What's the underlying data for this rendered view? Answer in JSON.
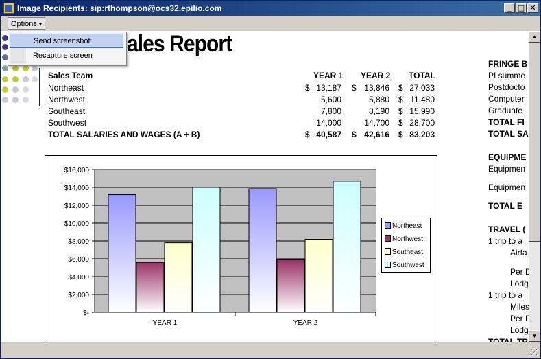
{
  "window": {
    "title": "Image Recipients: sip:rthompson@ocs32.epilio.com",
    "minimize_glyph": "_",
    "maximize_glyph": "□",
    "close_glyph": "✕"
  },
  "toolbar": {
    "options_label": "Options",
    "options_arrow": "▾"
  },
  "dropdown": {
    "items": [
      {
        "label": "Send screenshot",
        "selected": true
      },
      {
        "label": "Recapture screen",
        "selected": false
      }
    ]
  },
  "report": {
    "title": "ales Report",
    "header": {
      "team": "Sales Team",
      "year1": "YEAR 1",
      "year2": "YEAR 2",
      "total": "TOTAL"
    },
    "rows": [
      {
        "team": "Northeast",
        "y1_cur": "$",
        "y1": "13,187",
        "y2_cur": "$",
        "y2": "13,846",
        "t_cur": "$",
        "total": "27,033",
        "bold": false
      },
      {
        "team": "Northwest",
        "y1_cur": "",
        "y1": "5,600",
        "y2_cur": "",
        "y2": "5,880",
        "t_cur": "$",
        "total": "11,480",
        "bold": false
      },
      {
        "team": "Southeast",
        "y1_cur": "",
        "y1": "7,800",
        "y2_cur": "",
        "y2": "8,190",
        "t_cur": "$",
        "total": "15,990",
        "bold": false
      },
      {
        "team": "Southwest",
        "y1_cur": "",
        "y1": "14,000",
        "y2_cur": "",
        "y2": "14,700",
        "t_cur": "$",
        "total": "28,700",
        "bold": false
      },
      {
        "team": "TOTAL SALARIES AND WAGES (A + B)",
        "y1_cur": "$",
        "y1": "40,587",
        "y2_cur": "$",
        "y2": "42,616",
        "t_cur": "$",
        "total": "83,203",
        "bold": true
      }
    ]
  },
  "right_column": [
    {
      "text": "FRINGE B",
      "bold": true
    },
    {
      "text": "PI summe",
      "bold": false
    },
    {
      "text": "Postdocto",
      "bold": false
    },
    {
      "text": "Computer",
      "bold": false
    },
    {
      "text": "Graduate",
      "bold": false
    },
    {
      "text": "TOTAL FI",
      "bold": true
    },
    {
      "text": "TOTAL SA",
      "bold": true
    },
    {
      "text": "EQUIPME",
      "bold": true
    },
    {
      "text": "Equipmen",
      "bold": false
    },
    {
      "text": "Equipmen",
      "bold": false
    },
    {
      "text": "TOTAL E",
      "bold": true
    },
    {
      "text": "TRAVEL (",
      "bold": true
    },
    {
      "text": "1 trip to a",
      "bold": false
    },
    {
      "text": "Airfa",
      "bold": false
    },
    {
      "text": "Per D",
      "bold": false
    },
    {
      "text": "Lodg",
      "bold": false
    },
    {
      "text": "1 trip to a",
      "bold": false
    },
    {
      "text": "Miles",
      "bold": false
    },
    {
      "text": "Per D",
      "bold": false
    },
    {
      "text": "Lodg",
      "bold": false
    },
    {
      "text": "TOTAL TR",
      "bold": true
    }
  ],
  "colors": {
    "northeast": "#9999ff",
    "northwest": "#993366",
    "southeast": "#ffffcc",
    "southwest": "#ccffff",
    "plot_bg": "#c0c0c0"
  },
  "chart_data": {
    "type": "bar",
    "categories": [
      "YEAR 1",
      "YEAR 2"
    ],
    "series": [
      {
        "name": "Northeast",
        "values": [
          13187,
          13846
        ]
      },
      {
        "name": "Northwest",
        "values": [
          5600,
          5880
        ]
      },
      {
        "name": "Southeast",
        "values": [
          7800,
          8190
        ]
      },
      {
        "name": "Southwest",
        "values": [
          14000,
          14700
        ]
      }
    ],
    "ylim": [
      0,
      16000
    ],
    "yticks": [
      "$-",
      "$2,000",
      "$4,000",
      "$6,000",
      "$8,000",
      "$10,000",
      "$12,000",
      "$14,000",
      "$16,000"
    ],
    "grid": true,
    "legend": "right"
  }
}
